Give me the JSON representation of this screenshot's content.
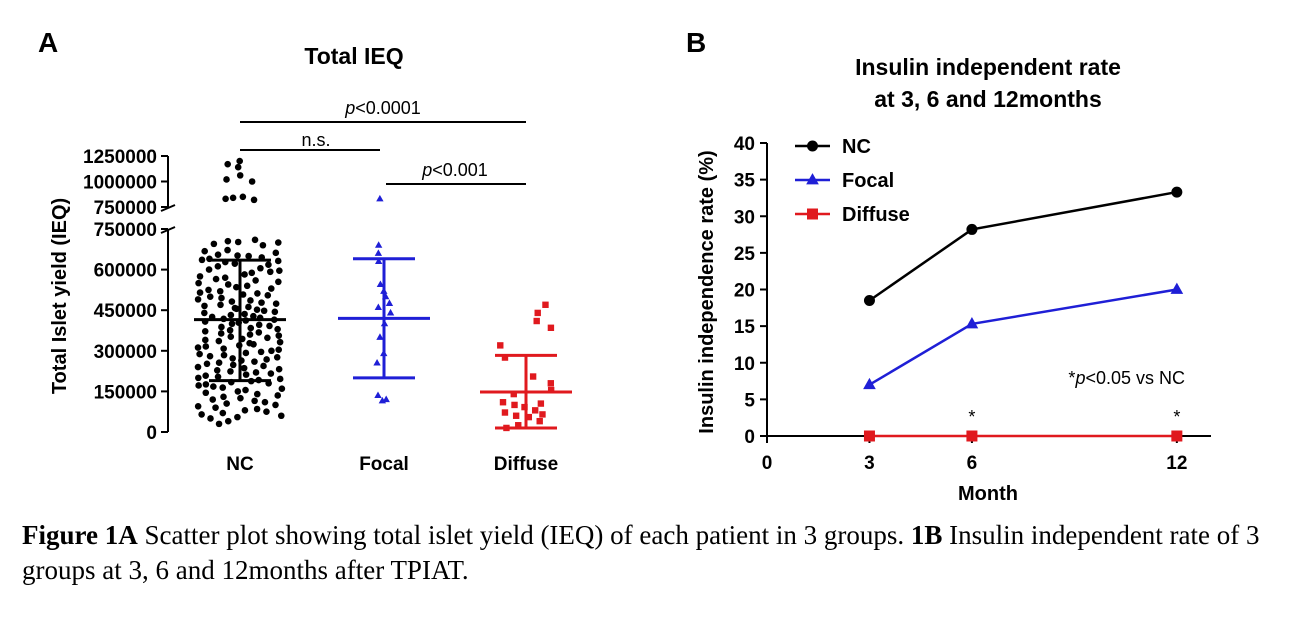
{
  "chart_data": [
    {
      "panel_label": "A",
      "type": "scatter",
      "title": "Total IEQ",
      "ylabel": "Total Islet yield (IEQ)",
      "categories": [
        "NC",
        "Focal",
        "Diffuse"
      ],
      "y_ticks_lower": [
        "0",
        "150000",
        "300000",
        "450000",
        "600000",
        "750000"
      ],
      "y_ticks_upper": [
        "750000",
        "1000000",
        "1250000"
      ],
      "ylim_lower": [
        0,
        750000
      ],
      "ylim_upper": [
        750000,
        1250000
      ],
      "series": [
        {
          "category": "NC",
          "color": "#000000",
          "marker": "circle",
          "mean": 415000,
          "sd_low": 190000,
          "sd_high": 635000,
          "values": [
            1200000,
            1170000,
            1140000,
            1060000,
            1020000,
            1000000,
            850000,
            840000,
            830000,
            820000,
            710000,
            705000,
            702000,
            700000,
            695000,
            690000,
            672000,
            668000,
            662000,
            655000,
            652000,
            650000,
            645000,
            640000,
            636000,
            632000,
            628000,
            622000,
            618000,
            612000,
            605000,
            600000,
            596000,
            592000,
            588000,
            582000,
            575000,
            570000,
            565000,
            560000,
            555000,
            550000,
            545000,
            540000,
            535000,
            530000,
            525000,
            520000,
            515000,
            512000,
            508000,
            505000,
            500000,
            495000,
            490000,
            486000,
            482000,
            478000,
            474000,
            470000,
            466000,
            462000,
            458000,
            455000,
            452000,
            448000,
            444000,
            440000,
            436000,
            432000,
            428000,
            425000,
            422000,
            418000,
            415000,
            412000,
            408000,
            404000,
            400000,
            396000,
            392000,
            388000,
            384000,
            380000,
            376000,
            372000,
            368000,
            364000,
            360000,
            356000,
            352000,
            348000,
            344000,
            340000,
            336000,
            332000,
            328000,
            324000,
            320000,
            316000,
            312000,
            308000,
            304000,
            300000,
            296000,
            292000,
            288000,
            284000,
            280000,
            276000,
            272000,
            268000,
            264000,
            260000,
            256000,
            252000,
            248000,
            244000,
            240000,
            236000,
            232000,
            228000,
            224000,
            220000,
            216000,
            212000,
            208000,
            204000,
            200000,
            196000,
            192000,
            188000,
            184000,
            180000,
            176000,
            172000,
            168000,
            164000,
            160000,
            155000,
            150000,
            145000,
            140000,
            135000,
            130000,
            125000,
            120000,
            115000,
            110000,
            105000,
            100000,
            95000,
            90000,
            85000,
            80000,
            75000,
            70000,
            65000,
            60000,
            55000,
            50000,
            40000,
            30000
          ]
        },
        {
          "category": "Focal",
          "color": "#1f1fd6",
          "marker": "triangle",
          "mean": 420000,
          "sd_low": 200000,
          "sd_high": 640000,
          "values": [
            830000,
            690000,
            660000,
            630000,
            545000,
            520000,
            500000,
            475000,
            460000,
            440000,
            400000,
            350000,
            290000,
            255000,
            135000,
            120000,
            115000
          ]
        },
        {
          "category": "Diffuse",
          "color": "#e0191e",
          "marker": "square",
          "mean": 148000,
          "sd_low": 15000,
          "sd_high": 283000,
          "values": [
            470000,
            440000,
            410000,
            385000,
            320000,
            275000,
            205000,
            180000,
            155000,
            140000,
            110000,
            105000,
            100000,
            92000,
            80000,
            72000,
            65000,
            60000,
            55000,
            40000,
            25000,
            15000
          ]
        }
      ],
      "annotations": [
        {
          "text_prefix": "p",
          "text": "<0.0001",
          "from": "NC",
          "to": "Diffuse"
        },
        {
          "text_prefix": "",
          "text": "n.s.",
          "from": "NC",
          "to": "Focal"
        },
        {
          "text_prefix": "p",
          "text": "<0.001",
          "from": "Focal",
          "to": "Diffuse"
        }
      ]
    },
    {
      "panel_label": "B",
      "type": "line",
      "title_lines": [
        "Insulin independent rate",
        "at 3, 6 and 12months"
      ],
      "xlabel": "Month",
      "ylabel": "Insulin independence rate (%)",
      "x": [
        3,
        6,
        12
      ],
      "x_ticks": [
        0,
        3,
        6,
        12
      ],
      "xlim": [
        0,
        13
      ],
      "y_ticks": [
        0,
        5,
        10,
        15,
        20,
        25,
        30,
        35,
        40
      ],
      "ylim": [
        0,
        40
      ],
      "legend_position": "top-left",
      "series": [
        {
          "name": "NC",
          "color": "#000000",
          "marker": "circle",
          "values": [
            18.5,
            28.2,
            33.3
          ]
        },
        {
          "name": "Focal",
          "color": "#1f1fd6",
          "marker": "triangle",
          "values": [
            7,
            15.3,
            20
          ]
        },
        {
          "name": "Diffuse",
          "color": "#e0191e",
          "marker": "square",
          "values": [
            0,
            0,
            0
          ]
        }
      ],
      "significance_marks": [
        {
          "x": 6,
          "text": "*"
        },
        {
          "x": 12,
          "text": "*"
        }
      ],
      "note_prefix": "*",
      "note_p": "p",
      "note_rest": "<0.05 vs NC"
    }
  ],
  "caption": {
    "label_a": "Figure 1A",
    "text_a": " Scatter plot showing total islet yield (IEQ) of each patient in 3 groups. ",
    "label_b": "1B",
    "text_b": " Insulin independent rate of 3 groups at 3, 6 and 12months after TPIAT."
  }
}
